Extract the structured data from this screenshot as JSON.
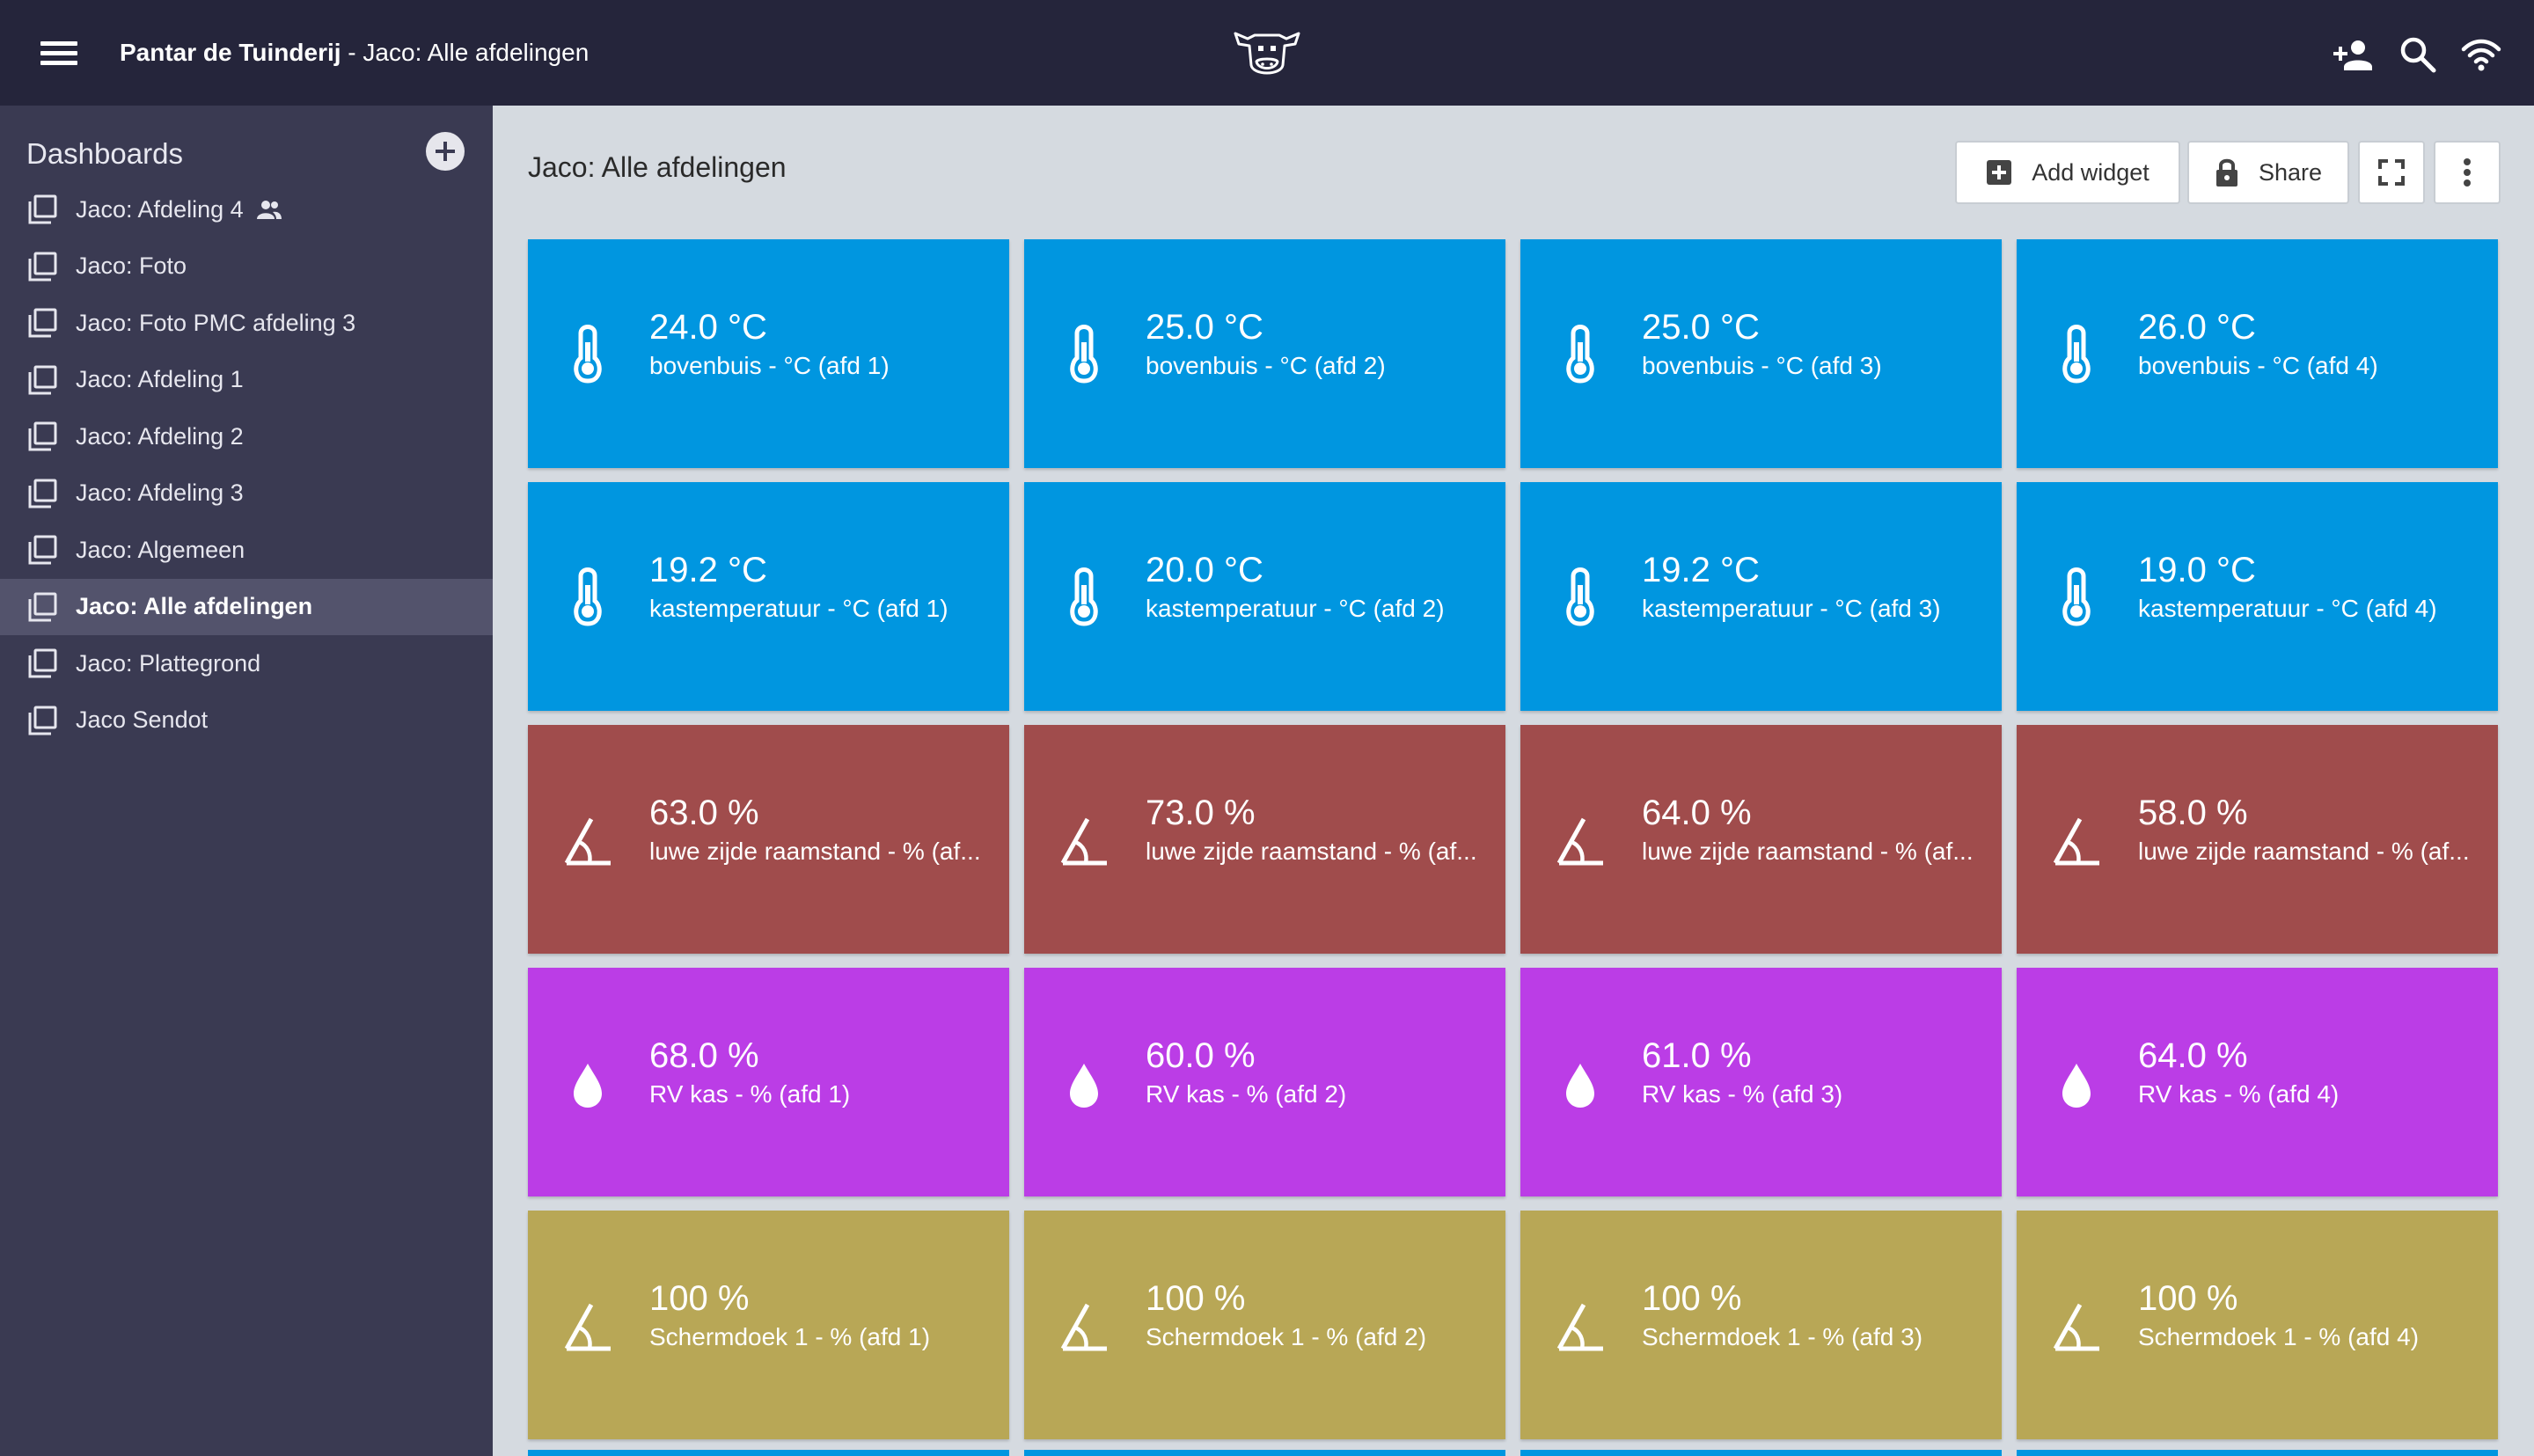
{
  "header": {
    "org": "Pantar de Tuinderij",
    "separator": " - ",
    "dashboard": "Jaco: Alle afdelingen",
    "icons": [
      "menu-icon",
      "cow-logo",
      "add-user-icon",
      "search-icon",
      "wifi-icon"
    ]
  },
  "sidebar": {
    "heading": "Dashboards",
    "items": [
      {
        "label": "Jaco: Afdeling 4",
        "shared": true,
        "active": false
      },
      {
        "label": "Jaco: Foto",
        "shared": false,
        "active": false
      },
      {
        "label": "Jaco: Foto PMC afdeling 3",
        "shared": false,
        "active": false
      },
      {
        "label": "Jaco: Afdeling 1",
        "shared": false,
        "active": false
      },
      {
        "label": "Jaco: Afdeling 2",
        "shared": false,
        "active": false
      },
      {
        "label": "Jaco: Afdeling 3",
        "shared": false,
        "active": false
      },
      {
        "label": "Jaco: Algemeen",
        "shared": false,
        "active": false
      },
      {
        "label": "Jaco: Alle afdelingen",
        "shared": false,
        "active": true
      },
      {
        "label": "Jaco: Plattegrond",
        "shared": false,
        "active": false
      },
      {
        "label": "Jaco Sendot",
        "shared": false,
        "active": false
      }
    ]
  },
  "main": {
    "title": "Jaco: Alle afdelingen",
    "toolbar": {
      "add_widget": "Add widget",
      "share": "Share"
    },
    "colors": {
      "temperature": "#0096e0",
      "vent": "#a04c4c",
      "humidity": "#bb3de6",
      "screen": "#b8a756"
    },
    "tiles": [
      {
        "value": "24.0 °C",
        "label": "bovenbuis - °C (afd 1)",
        "icon": "thermometer-icon",
        "kind": "temperature"
      },
      {
        "value": "25.0 °C",
        "label": "bovenbuis - °C (afd 2)",
        "icon": "thermometer-icon",
        "kind": "temperature"
      },
      {
        "value": "25.0 °C",
        "label": "bovenbuis - °C (afd 3)",
        "icon": "thermometer-icon",
        "kind": "temperature"
      },
      {
        "value": "26.0 °C",
        "label": "bovenbuis - °C (afd 4)",
        "icon": "thermometer-icon",
        "kind": "temperature"
      },
      {
        "value": "19.2 °C",
        "label": "kastemperatuur - °C (afd 1)",
        "icon": "thermometer-icon",
        "kind": "temperature"
      },
      {
        "value": "20.0 °C",
        "label": "kastemperatuur - °C (afd 2)",
        "icon": "thermometer-icon",
        "kind": "temperature"
      },
      {
        "value": "19.2 °C",
        "label": "kastemperatuur - °C (afd 3)",
        "icon": "thermometer-icon",
        "kind": "temperature"
      },
      {
        "value": "19.0 °C",
        "label": "kastemperatuur - °C (afd 4)",
        "icon": "thermometer-icon",
        "kind": "temperature"
      },
      {
        "value": "63.0 %",
        "label": "luwe zijde raamstand - % (af...",
        "icon": "angle-icon",
        "kind": "vent"
      },
      {
        "value": "73.0 %",
        "label": "luwe zijde raamstand - % (af...",
        "icon": "angle-icon",
        "kind": "vent"
      },
      {
        "value": "64.0 %",
        "label": "luwe zijde raamstand - % (af...",
        "icon": "angle-icon",
        "kind": "vent"
      },
      {
        "value": "58.0 %",
        "label": "luwe zijde raamstand - % (af...",
        "icon": "angle-icon",
        "kind": "vent"
      },
      {
        "value": "68.0 %",
        "label": "RV kas - % (afd 1)",
        "icon": "water-drop-icon",
        "kind": "humidity"
      },
      {
        "value": "60.0 %",
        "label": "RV kas - % (afd 2)",
        "icon": "water-drop-icon",
        "kind": "humidity"
      },
      {
        "value": "61.0 %",
        "label": "RV kas - % (afd 3)",
        "icon": "water-drop-icon",
        "kind": "humidity"
      },
      {
        "value": "64.0 %",
        "label": "RV kas - % (afd 4)",
        "icon": "water-drop-icon",
        "kind": "humidity"
      },
      {
        "value": "100 %",
        "label": "Schermdoek 1 - % (afd 1)",
        "icon": "angle-icon",
        "kind": "screen"
      },
      {
        "value": "100 %",
        "label": "Schermdoek 1 - % (afd 2)",
        "icon": "angle-icon",
        "kind": "screen"
      },
      {
        "value": "100 %",
        "label": "Schermdoek 1 - % (afd 3)",
        "icon": "angle-icon",
        "kind": "screen"
      },
      {
        "value": "100 %",
        "label": "Schermdoek 1 - % (afd 4)",
        "icon": "angle-icon",
        "kind": "screen"
      }
    ]
  }
}
